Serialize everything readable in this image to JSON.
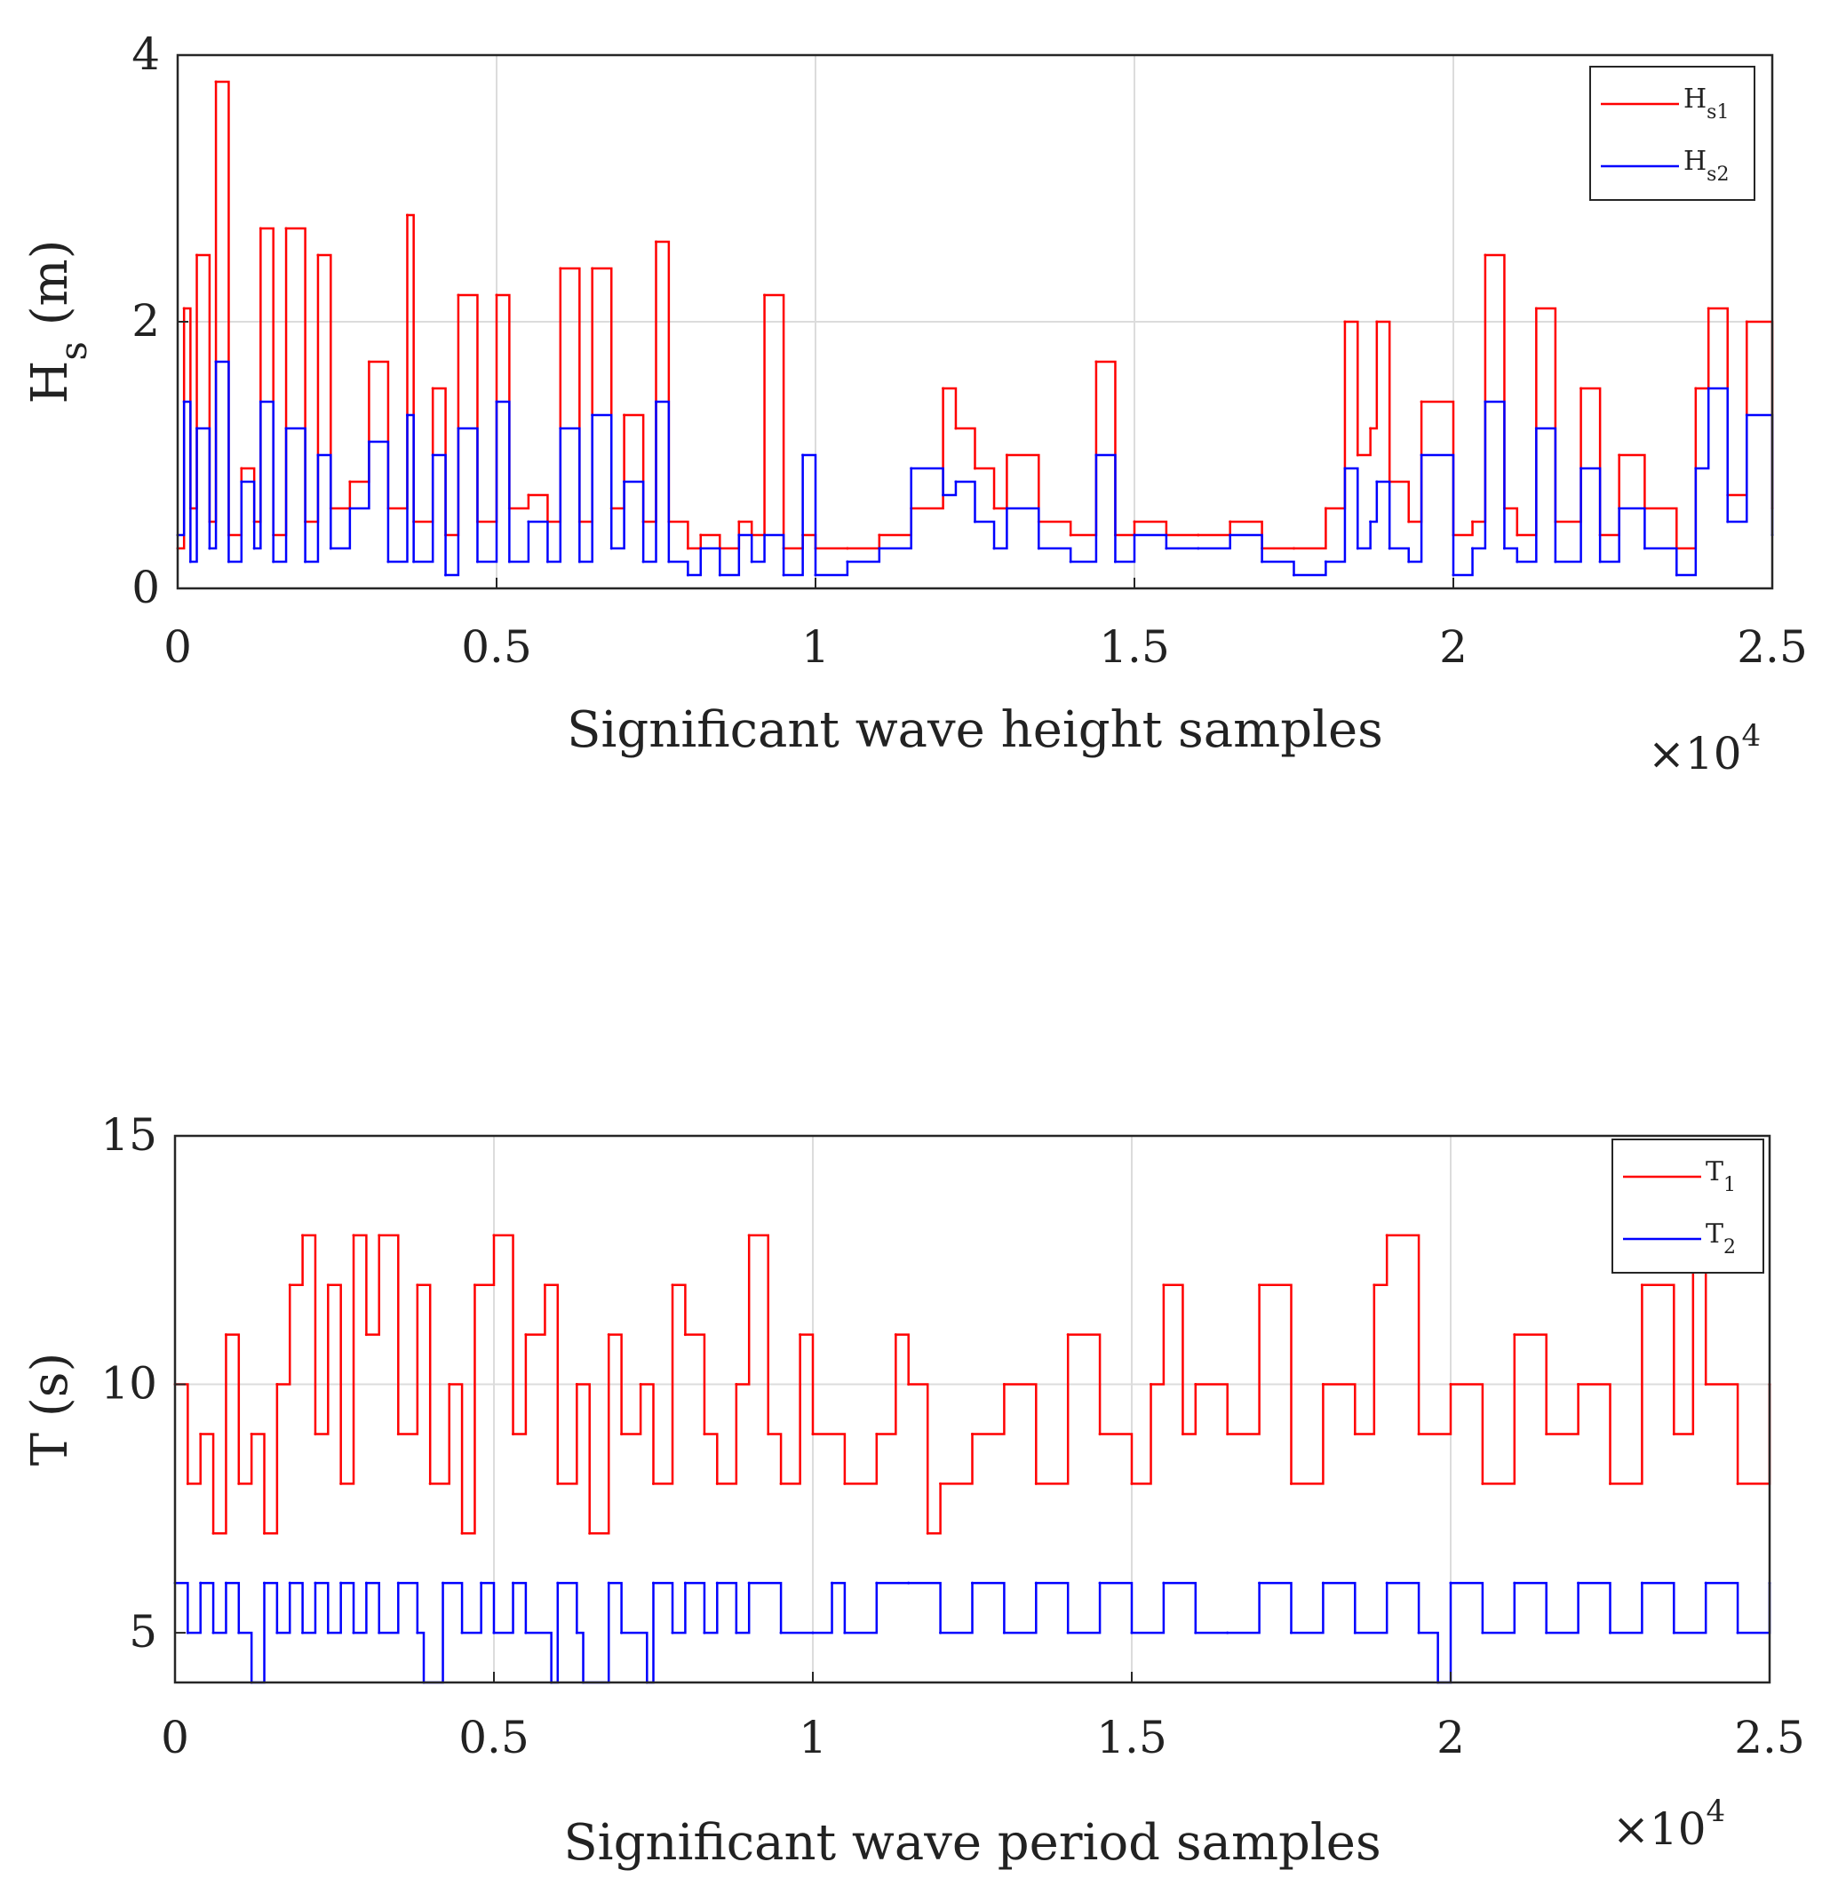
{
  "chart_data": [
    {
      "type": "line",
      "xlabel": "Significant wave height samples",
      "ylabel": "H",
      "ylabel_sub": "s",
      "ylabel_unit": "(m)",
      "x_multiplier_base": "×10",
      "x_multiplier_exp": "4",
      "xlim": [
        0,
        2.5
      ],
      "ylim": [
        0,
        4
      ],
      "xticks": [
        "0",
        "0.5",
        "1",
        "1.5",
        "2",
        "2.5"
      ],
      "xtick_values": [
        0,
        0.5,
        1,
        1.5,
        2,
        2.5
      ],
      "yticks": [
        "0",
        "2",
        "4"
      ],
      "ytick_values": [
        0,
        2,
        4
      ],
      "grid": true,
      "legend_position": "top-right",
      "series": [
        {
          "name": "H",
          "sub": "s1",
          "color": "#ff0000",
          "x": [
            0,
            0.01,
            0.02,
            0.03,
            0.05,
            0.06,
            0.08,
            0.1,
            0.12,
            0.13,
            0.15,
            0.17,
            0.2,
            0.22,
            0.24,
            0.27,
            0.3,
            0.33,
            0.36,
            0.37,
            0.4,
            0.42,
            0.44,
            0.47,
            0.5,
            0.52,
            0.55,
            0.58,
            0.6,
            0.63,
            0.65,
            0.68,
            0.7,
            0.73,
            0.75,
            0.77,
            0.8,
            0.82,
            0.85,
            0.88,
            0.9,
            0.92,
            0.95,
            0.98,
            1.0,
            1.05,
            1.1,
            1.15,
            1.2,
            1.22,
            1.25,
            1.28,
            1.3,
            1.35,
            1.4,
            1.44,
            1.47,
            1.5,
            1.55,
            1.6,
            1.65,
            1.7,
            1.75,
            1.8,
            1.83,
            1.85,
            1.87,
            1.88,
            1.9,
            1.93,
            1.95,
            2.0,
            2.03,
            2.05,
            2.08,
            2.1,
            2.13,
            2.16,
            2.2,
            2.23,
            2.26,
            2.3,
            2.35,
            2.38,
            2.4,
            2.43,
            2.46,
            2.5
          ],
          "y": [
            0.3,
            2.1,
            0.6,
            2.5,
            0.5,
            3.8,
            0.4,
            0.9,
            0.5,
            2.7,
            0.4,
            2.7,
            0.5,
            2.5,
            0.6,
            0.8,
            1.7,
            0.6,
            2.8,
            0.5,
            1.5,
            0.4,
            2.2,
            0.5,
            2.2,
            0.6,
            0.7,
            0.5,
            2.4,
            0.5,
            2.4,
            0.6,
            1.3,
            0.5,
            2.6,
            0.5,
            0.3,
            0.4,
            0.3,
            0.5,
            0.4,
            2.2,
            0.3,
            0.4,
            0.3,
            0.3,
            0.4,
            0.6,
            1.5,
            1.2,
            0.9,
            0.6,
            1.0,
            0.5,
            0.4,
            1.7,
            0.4,
            0.5,
            0.4,
            0.4,
            0.5,
            0.3,
            0.3,
            0.6,
            2.0,
            1.0,
            1.2,
            2.0,
            0.8,
            0.5,
            1.4,
            0.4,
            0.5,
            2.5,
            0.6,
            0.4,
            2.1,
            0.5,
            1.5,
            0.4,
            1.0,
            0.6,
            0.3,
            1.5,
            2.1,
            0.7,
            2.0,
            0.6
          ]
        },
        {
          "name": "H",
          "sub": "s2",
          "color": "#0000ff",
          "x": [
            0,
            0.01,
            0.02,
            0.03,
            0.05,
            0.06,
            0.08,
            0.1,
            0.12,
            0.13,
            0.15,
            0.17,
            0.2,
            0.22,
            0.24,
            0.27,
            0.3,
            0.33,
            0.36,
            0.37,
            0.4,
            0.42,
            0.44,
            0.47,
            0.5,
            0.52,
            0.55,
            0.58,
            0.6,
            0.63,
            0.65,
            0.68,
            0.7,
            0.73,
            0.75,
            0.77,
            0.8,
            0.82,
            0.85,
            0.88,
            0.9,
            0.92,
            0.95,
            0.98,
            1.0,
            1.05,
            1.1,
            1.15,
            1.2,
            1.22,
            1.25,
            1.28,
            1.3,
            1.35,
            1.4,
            1.44,
            1.47,
            1.5,
            1.55,
            1.6,
            1.65,
            1.7,
            1.75,
            1.8,
            1.83,
            1.85,
            1.87,
            1.88,
            1.9,
            1.93,
            1.95,
            2.0,
            2.03,
            2.05,
            2.08,
            2.1,
            2.13,
            2.16,
            2.2,
            2.23,
            2.26,
            2.3,
            2.35,
            2.38,
            2.4,
            2.43,
            2.46,
            2.5
          ],
          "y": [
            0.4,
            1.4,
            0.2,
            1.2,
            0.3,
            1.7,
            0.2,
            0.8,
            0.3,
            1.4,
            0.2,
            1.2,
            0.2,
            1.0,
            0.3,
            0.6,
            1.1,
            0.2,
            1.3,
            0.2,
            1.0,
            0.1,
            1.2,
            0.2,
            1.4,
            0.2,
            0.5,
            0.2,
            1.2,
            0.2,
            1.3,
            0.3,
            0.8,
            0.2,
            1.4,
            0.2,
            0.1,
            0.3,
            0.1,
            0.4,
            0.2,
            0.4,
            0.1,
            1.0,
            0.1,
            0.2,
            0.3,
            0.9,
            0.7,
            0.8,
            0.5,
            0.3,
            0.6,
            0.3,
            0.2,
            1.0,
            0.2,
            0.4,
            0.3,
            0.3,
            0.4,
            0.2,
            0.1,
            0.2,
            0.9,
            0.3,
            0.5,
            0.8,
            0.3,
            0.2,
            1.0,
            0.1,
            0.3,
            1.4,
            0.3,
            0.2,
            1.2,
            0.2,
            0.9,
            0.2,
            0.6,
            0.3,
            0.1,
            0.9,
            1.5,
            0.5,
            1.3,
            0.4
          ]
        }
      ]
    },
    {
      "type": "line",
      "xlabel": "Significant wave period samples",
      "ylabel": "T (s)",
      "x_multiplier_base": "×10",
      "x_multiplier_exp": "4",
      "xlim": [
        0,
        2.5
      ],
      "ylim": [
        4,
        15
      ],
      "xticks": [
        "0",
        "0.5",
        "1",
        "1.5",
        "2",
        "2.5"
      ],
      "xtick_values": [
        0,
        0.5,
        1,
        1.5,
        2,
        2.5
      ],
      "yticks": [
        "5",
        "10",
        "15"
      ],
      "ytick_values": [
        5,
        10,
        15
      ],
      "grid": true,
      "legend_position": "top-right",
      "series": [
        {
          "name": "T",
          "sub": "1",
          "color": "#ff0000",
          "x": [
            0,
            0.02,
            0.04,
            0.06,
            0.08,
            0.1,
            0.12,
            0.14,
            0.16,
            0.18,
            0.2,
            0.22,
            0.24,
            0.26,
            0.28,
            0.3,
            0.32,
            0.35,
            0.38,
            0.4,
            0.43,
            0.45,
            0.47,
            0.5,
            0.53,
            0.55,
            0.58,
            0.6,
            0.63,
            0.65,
            0.68,
            0.7,
            0.73,
            0.75,
            0.78,
            0.8,
            0.83,
            0.85,
            0.88,
            0.9,
            0.93,
            0.95,
            0.98,
            1.0,
            1.05,
            1.1,
            1.13,
            1.15,
            1.18,
            1.2,
            1.25,
            1.3,
            1.35,
            1.4,
            1.45,
            1.5,
            1.53,
            1.55,
            1.58,
            1.6,
            1.65,
            1.7,
            1.75,
            1.8,
            1.85,
            1.88,
            1.9,
            1.95,
            2.0,
            2.05,
            2.1,
            2.15,
            2.2,
            2.25,
            2.3,
            2.35,
            2.38,
            2.4,
            2.45,
            2.5
          ],
          "y": [
            10,
            8,
            9,
            7,
            11,
            8,
            9,
            7,
            10,
            12,
            13,
            9,
            12,
            8,
            13,
            11,
            13,
            9,
            12,
            8,
            10,
            7,
            12,
            13,
            9,
            11,
            12,
            8,
            10,
            7,
            11,
            9,
            10,
            8,
            12,
            11,
            9,
            8,
            10,
            13,
            9,
            8,
            11,
            9,
            8,
            9,
            11,
            10,
            7,
            8,
            9,
            10,
            8,
            11,
            9,
            8,
            10,
            12,
            9,
            10,
            9,
            12,
            8,
            10,
            9,
            12,
            13,
            9,
            10,
            8,
            11,
            9,
            10,
            8,
            12,
            9,
            13,
            10,
            8,
            10
          ]
        },
        {
          "name": "T",
          "sub": "2",
          "color": "#0000ff",
          "x": [
            0,
            0.02,
            0.04,
            0.06,
            0.08,
            0.1,
            0.12,
            0.14,
            0.16,
            0.18,
            0.2,
            0.22,
            0.24,
            0.26,
            0.28,
            0.3,
            0.32,
            0.35,
            0.38,
            0.39,
            0.42,
            0.45,
            0.48,
            0.5,
            0.53,
            0.55,
            0.59,
            0.6,
            0.63,
            0.64,
            0.68,
            0.7,
            0.74,
            0.75,
            0.78,
            0.8,
            0.83,
            0.85,
            0.88,
            0.9,
            0.95,
            1.0,
            1.03,
            1.05,
            1.1,
            1.15,
            1.2,
            1.25,
            1.3,
            1.35,
            1.4,
            1.45,
            1.5,
            1.55,
            1.6,
            1.65,
            1.7,
            1.75,
            1.8,
            1.85,
            1.9,
            1.95,
            1.98,
            2.0,
            2.05,
            2.1,
            2.15,
            2.2,
            2.25,
            2.3,
            2.35,
            2.4,
            2.45,
            2.5
          ],
          "y": [
            6,
            5,
            6,
            5,
            6,
            5,
            4,
            6,
            5,
            6,
            5,
            6,
            5,
            6,
            5,
            6,
            5,
            6,
            5,
            4,
            6,
            5,
            6,
            5,
            6,
            5,
            4,
            6,
            5,
            4,
            6,
            5,
            4,
            6,
            5,
            6,
            5,
            6,
            5,
            6,
            5,
            5,
            6,
            5,
            6,
            6,
            5,
            6,
            5,
            6,
            5,
            6,
            5,
            6,
            5,
            5,
            6,
            5,
            6,
            5,
            6,
            5,
            4,
            6,
            5,
            6,
            5,
            6,
            5,
            6,
            5,
            6,
            5,
            6
          ]
        }
      ]
    }
  ]
}
